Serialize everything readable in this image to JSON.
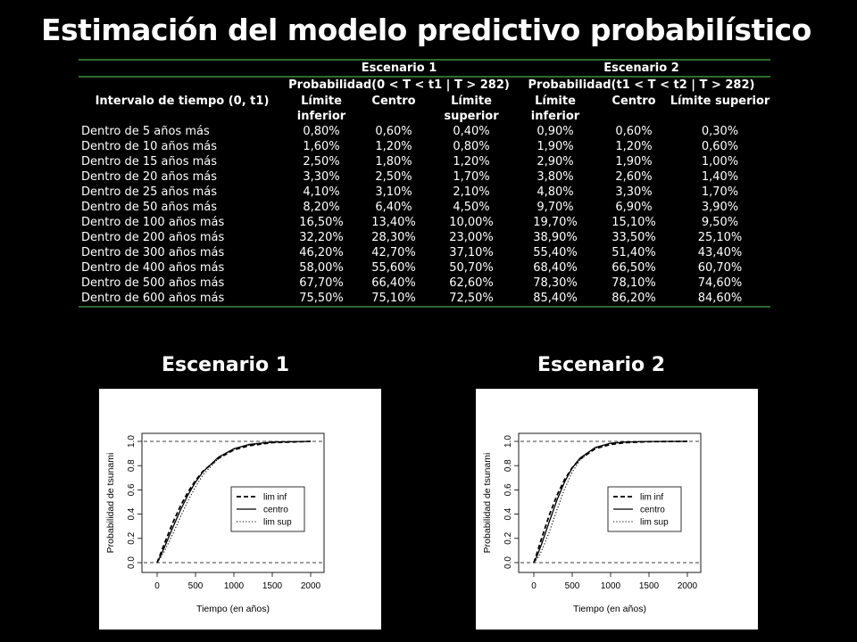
{
  "title": "Estimación del modelo predictivo probabilístico",
  "table": {
    "scenario_headers": [
      "Escenario 1",
      "Escenario 2"
    ],
    "prob_headers": [
      "Probabilidad(0 < T < t1 | T > 282)",
      "Probabilidad(t1 < T < t2 | T > 282)"
    ],
    "col_interval": "Intervalo de tiempo (0, t1)",
    "sub_headers": [
      "Límite inferior",
      "Centro",
      "Límite superior",
      "Límite inferior",
      "Centro",
      "Límite superior"
    ],
    "rows": [
      {
        "label": "Dentro de 5 años más",
        "v": [
          "0,80%",
          "0,60%",
          "0,40%",
          "0,90%",
          "0,60%",
          "0,30%"
        ]
      },
      {
        "label": "Dentro de 10 años más",
        "v": [
          "1,60%",
          "1,20%",
          "0,80%",
          "1,90%",
          "1,20%",
          "0,60%"
        ]
      },
      {
        "label": "Dentro de 15 años más",
        "v": [
          "2,50%",
          "1,80%",
          "1,20%",
          "2,90%",
          "1,90%",
          "1,00%"
        ]
      },
      {
        "label": "Dentro de 20 años más",
        "v": [
          "3,30%",
          "2,50%",
          "1,70%",
          "3,80%",
          "2,60%",
          "1,40%"
        ]
      },
      {
        "label": "Dentro de 25 años más",
        "v": [
          "4,10%",
          "3,10%",
          "2,10%",
          "4,80%",
          "3,30%",
          "1,70%"
        ]
      },
      {
        "label": "Dentro de 50 años más",
        "v": [
          "8,20%",
          "6,40%",
          "4,50%",
          "9,70%",
          "6,90%",
          "3,90%"
        ]
      },
      {
        "label": "Dentro de 100 años más",
        "v": [
          "16,50%",
          "13,40%",
          "10,00%",
          "19,70%",
          "15,10%",
          "9,50%"
        ]
      },
      {
        "label": "Dentro de 200 años más",
        "v": [
          "32,20%",
          "28,30%",
          "23,00%",
          "38,90%",
          "33,50%",
          "25,10%"
        ]
      },
      {
        "label": "Dentro de 300 años más",
        "v": [
          "46,20%",
          "42,70%",
          "37,10%",
          "55,40%",
          "51,40%",
          "43,40%"
        ]
      },
      {
        "label": "Dentro de 400 años más",
        "v": [
          "58,00%",
          "55,60%",
          "50,70%",
          "68,40%",
          "66,50%",
          "60,70%"
        ]
      },
      {
        "label": "Dentro de 500 años más",
        "v": [
          "67,70%",
          "66,40%",
          "62,60%",
          "78,30%",
          "78,10%",
          "74,60%"
        ]
      },
      {
        "label": "Dentro de 600 años más",
        "v": [
          "75,50%",
          "75,10%",
          "72,50%",
          "85,40%",
          "86,20%",
          "84,60%"
        ]
      }
    ]
  },
  "plot_labels": [
    "Escenario 1",
    "Escenario 2"
  ],
  "chart_data": [
    {
      "type": "line",
      "title": "",
      "xlabel": "Tiempo (en años)",
      "ylabel": "Probabilidad de tsunami",
      "xlim": [
        0,
        2000
      ],
      "ylim": [
        0,
        1
      ],
      "x_ticks": [
        "0",
        "500",
        "1000",
        "1500",
        "2000"
      ],
      "y_ticks": [
        "0.0",
        "0.2",
        "0.4",
        "0.6",
        "0.8",
        "1.0"
      ],
      "legend_position": "right",
      "reference_lines": [
        0,
        1
      ],
      "series": [
        {
          "name": "lim inf",
          "style": "dashed",
          "x": [
            0,
            5,
            10,
            15,
            20,
            25,
            50,
            100,
            200,
            300,
            400,
            500,
            600,
            800,
            1000,
            1200,
            1500,
            2000
          ],
          "y": [
            0,
            0.008,
            0.016,
            0.025,
            0.033,
            0.041,
            0.082,
            0.165,
            0.322,
            0.462,
            0.58,
            0.677,
            0.755,
            0.86,
            0.93,
            0.965,
            0.99,
            1.0
          ]
        },
        {
          "name": "centro",
          "style": "solid",
          "x": [
            0,
            5,
            10,
            15,
            20,
            25,
            50,
            100,
            200,
            300,
            400,
            500,
            600,
            800,
            1000,
            1200,
            1500,
            2000
          ],
          "y": [
            0,
            0.006,
            0.012,
            0.018,
            0.025,
            0.031,
            0.064,
            0.134,
            0.283,
            0.427,
            0.556,
            0.664,
            0.751,
            0.87,
            0.94,
            0.975,
            0.995,
            1.0
          ]
        },
        {
          "name": "lim sup",
          "style": "dotted",
          "x": [
            0,
            5,
            10,
            15,
            20,
            25,
            50,
            100,
            200,
            300,
            400,
            500,
            600,
            800,
            1000,
            1200,
            1500,
            2000
          ],
          "y": [
            0,
            0.004,
            0.008,
            0.012,
            0.017,
            0.021,
            0.045,
            0.1,
            0.23,
            0.371,
            0.507,
            0.626,
            0.725,
            0.86,
            0.935,
            0.97,
            0.993,
            1.0
          ]
        }
      ]
    },
    {
      "type": "line",
      "title": "",
      "xlabel": "Tiempo (en años)",
      "ylabel": "Probabilidad de tsunami",
      "xlim": [
        0,
        2000
      ],
      "ylim": [
        0,
        1
      ],
      "x_ticks": [
        "0",
        "500",
        "1000",
        "1500",
        "2000"
      ],
      "y_ticks": [
        "0.0",
        "0.2",
        "0.4",
        "0.6",
        "0.8",
        "1.0"
      ],
      "legend_position": "right",
      "reference_lines": [
        0,
        1
      ],
      "series": [
        {
          "name": "lim inf",
          "style": "dashed",
          "x": [
            0,
            5,
            10,
            15,
            20,
            25,
            50,
            100,
            200,
            300,
            400,
            500,
            600,
            800,
            1000,
            1200,
            1500,
            2000
          ],
          "y": [
            0,
            0.009,
            0.019,
            0.029,
            0.038,
            0.048,
            0.097,
            0.197,
            0.389,
            0.554,
            0.684,
            0.783,
            0.854,
            0.94,
            0.975,
            0.99,
            0.998,
            1.0
          ]
        },
        {
          "name": "centro",
          "style": "solid",
          "x": [
            0,
            5,
            10,
            15,
            20,
            25,
            50,
            100,
            200,
            300,
            400,
            500,
            600,
            800,
            1000,
            1200,
            1500,
            2000
          ],
          "y": [
            0,
            0.006,
            0.012,
            0.019,
            0.026,
            0.033,
            0.069,
            0.151,
            0.335,
            0.514,
            0.665,
            0.781,
            0.862,
            0.95,
            0.985,
            0.995,
            0.999,
            1.0
          ]
        },
        {
          "name": "lim sup",
          "style": "dotted",
          "x": [
            0,
            5,
            10,
            15,
            20,
            25,
            50,
            100,
            200,
            300,
            400,
            500,
            600,
            800,
            1000,
            1200,
            1500,
            2000
          ],
          "y": [
            0,
            0.003,
            0.006,
            0.01,
            0.014,
            0.017,
            0.039,
            0.095,
            0.251,
            0.434,
            0.607,
            0.746,
            0.846,
            0.945,
            0.982,
            0.994,
            0.999,
            1.0
          ]
        }
      ]
    }
  ]
}
